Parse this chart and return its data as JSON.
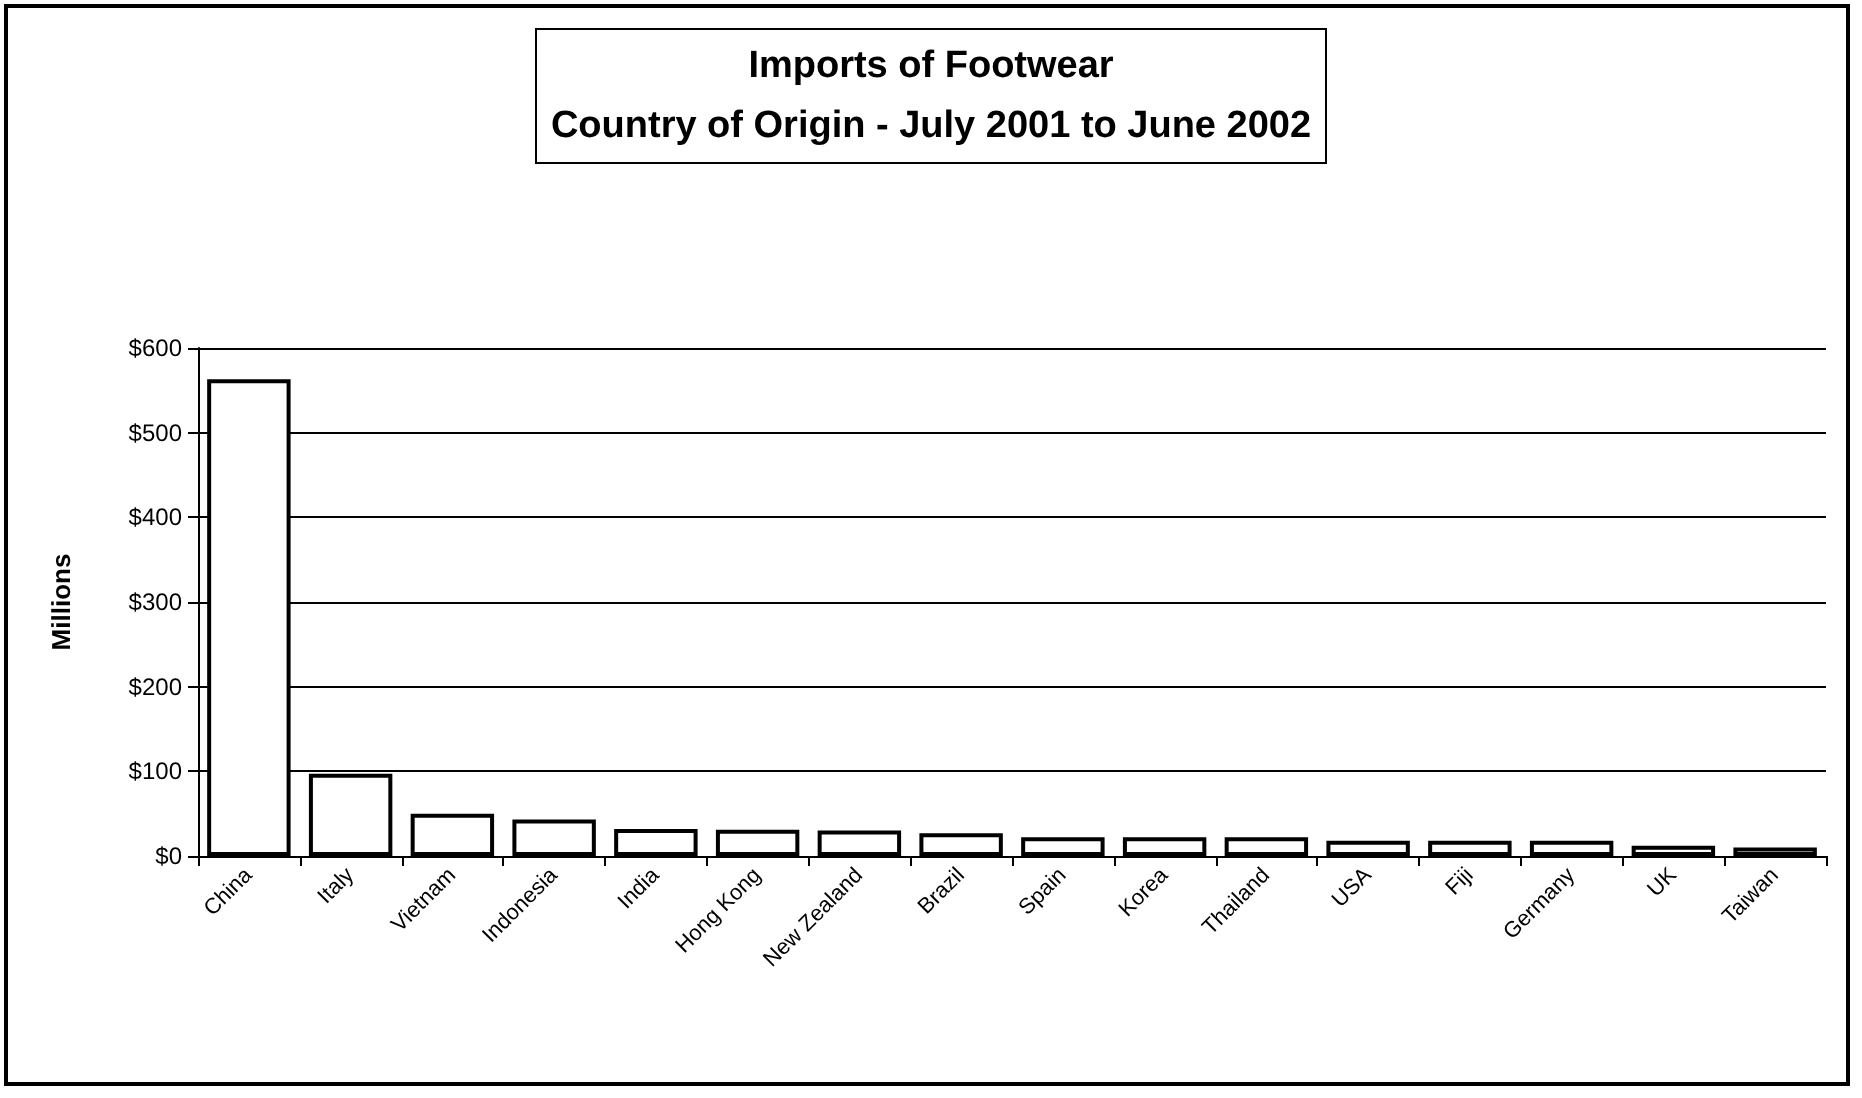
{
  "chart_data": {
    "type": "bar",
    "title": "Imports of Footwear\nCountry of Origin - July 2001 to June 2002",
    "ylabel": "Millions",
    "categories": [
      "China",
      "Italy",
      "Vietnam",
      "Indonesia",
      "India",
      "Hong Kong",
      "New Zealand",
      "Brazil",
      "Spain",
      "Korea",
      "Thailand",
      "USA",
      "Fiji",
      "Germany",
      "UK",
      "Taiwan"
    ],
    "values": [
      563,
      97,
      50,
      43,
      32,
      31,
      30,
      27,
      22,
      22,
      22,
      18,
      18,
      18,
      12,
      10
    ],
    "color": "#ffffff",
    "ylim": [
      0,
      600
    ],
    "yticks": [
      {
        "value": 0,
        "label": "$0"
      },
      {
        "value": 100,
        "label": "$100"
      },
      {
        "value": 200,
        "label": "$200"
      },
      {
        "value": 300,
        "label": "$300"
      },
      {
        "value": 400,
        "label": "$400"
      },
      {
        "value": 500,
        "label": "$500"
      },
      {
        "value": 600,
        "label": "$600"
      }
    ],
    "grid": "y"
  }
}
